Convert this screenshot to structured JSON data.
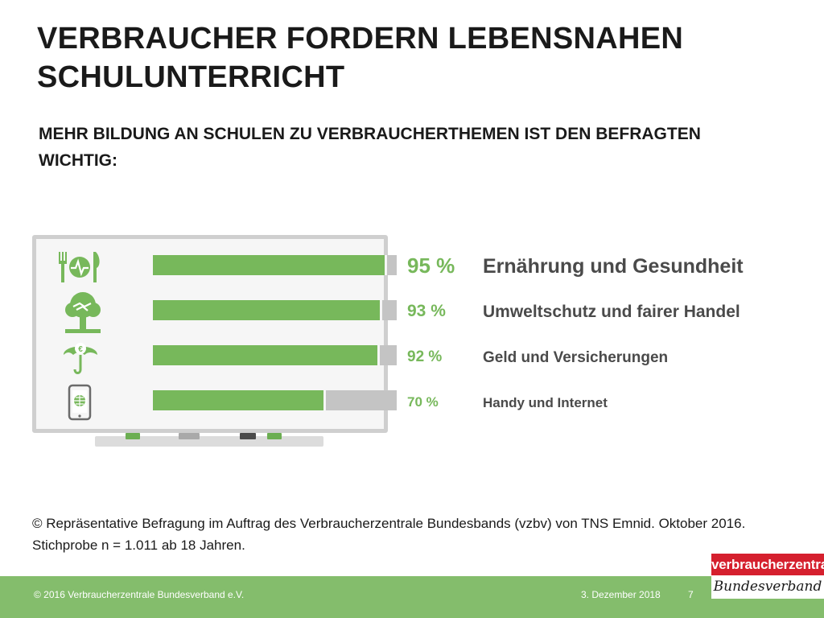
{
  "slide": {
    "title": "VERBRAUCHER FORDERN LEBENSNAHEN SCHULUNTERRICHT",
    "subtitle": "MEHR BILDUNG AN SCHULEN ZU VERBRAUCHERTHEMEN IST DEN BEFRAGTEN WICHTIG:",
    "source": "© Repräsentative Befragung im Auftrag des Verbraucherzentrale Bundesbands (vzbv) von TNS Emnid. Oktober 2016. Stichprobe n = 1.011 ab 18 Jahren."
  },
  "chart_data": {
    "type": "bar",
    "orientation": "horizontal",
    "categories": [
      "Ernährung und Gesundheit",
      "Umweltschutz und fairer Handel",
      "Geld und Versicherungen",
      "Handy und Internet"
    ],
    "values": [
      95,
      93,
      92,
      70
    ],
    "value_labels": [
      "95 %",
      "93 %",
      "92 %",
      "70 %"
    ],
    "icons": [
      "heartbeat-cutlery-icon",
      "tree-handshake-icon",
      "euro-umbrella-icon",
      "smartphone-globe-icon"
    ],
    "xlim": [
      0,
      100
    ],
    "colors": {
      "fill": "#77b85b",
      "remainder": "#c4c4c4"
    }
  },
  "footer": {
    "copyright": "© 2016 Verbraucherzentrale Bundesverband e.V.",
    "date": "3. Dezember 2018",
    "page": "7"
  },
  "logo": {
    "top": "verbraucherzentrale",
    "bottom": "Bundesverband",
    "colors": {
      "red": "#d5202e"
    }
  }
}
